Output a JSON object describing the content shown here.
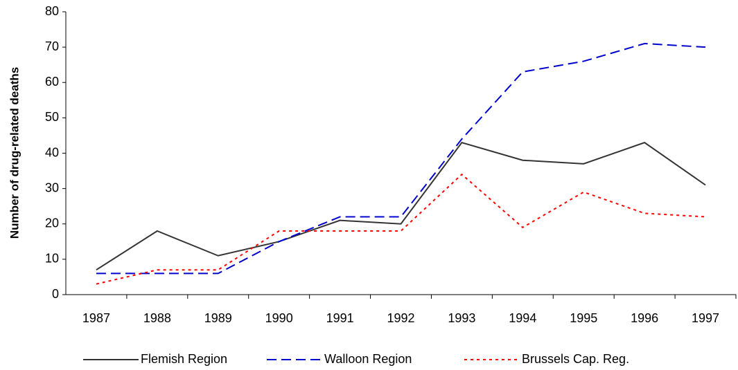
{
  "chart_data": {
    "type": "line",
    "y_label": "Number of drug-related deaths",
    "categories": [
      "1987",
      "1988",
      "1989",
      "1990",
      "1991",
      "1992",
      "1993",
      "1994",
      "1995",
      "1996",
      "1997"
    ],
    "series": [
      {
        "name": "Flemish Region",
        "color": "#333333",
        "style": "solid",
        "values": [
          7,
          18,
          11,
          15,
          21,
          20,
          43,
          38,
          37,
          43,
          31
        ]
      },
      {
        "name": "Walloon Region",
        "color": "#0000cc",
        "style": "dashed",
        "values": [
          6,
          6,
          6,
          15,
          22,
          22,
          44,
          63,
          66,
          71,
          70
        ]
      },
      {
        "name": "Brussels Cap. Reg.",
        "color": "#ff0000",
        "style": "dotted",
        "values": [
          3,
          7,
          7,
          18,
          18,
          18,
          34,
          19,
          29,
          23,
          22
        ]
      }
    ],
    "ylim": [
      0,
      80
    ],
    "yticks": [
      0,
      10,
      20,
      30,
      40,
      50,
      60,
      70,
      80
    ],
    "grid": false,
    "legend": "bottom"
  }
}
